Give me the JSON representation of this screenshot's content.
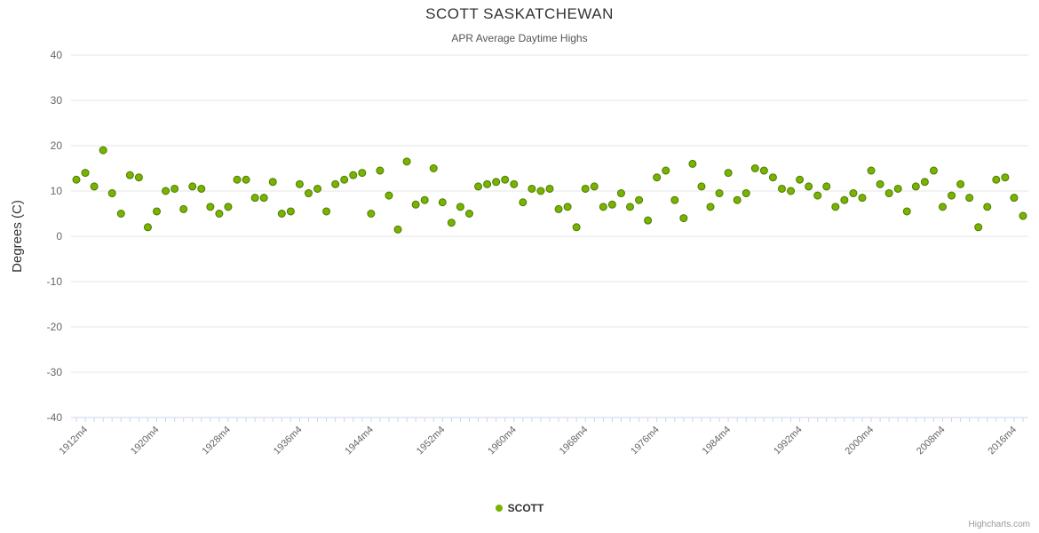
{
  "credits": "Highcharts.com",
  "chart_data": {
    "type": "scatter",
    "title": "SCOTT SASKATCHEWAN",
    "subtitle": "APR Average Daytime Highs",
    "xlabel": "",
    "ylabel": "Degrees (C)",
    "ylim": [
      -40,
      40
    ],
    "ytick_step": 10,
    "ytick_labels": [
      "-40",
      "-30",
      "-20",
      "-10",
      "0",
      "10",
      "20",
      "30",
      "40"
    ],
    "grid": true,
    "legend_position": "bottom-center",
    "x_start_year": 1911,
    "x_tick_start_year": 1912,
    "x_tick_interval": 8,
    "x_tick_labels": [
      "1912m4",
      "1920m4",
      "1928m4",
      "1936m4",
      "1944m4",
      "1952m4",
      "1960m4",
      "1968m4",
      "1976m4",
      "1984m4",
      "1992m4",
      "2000m4",
      "2008m4",
      "2016m4"
    ],
    "colors": {
      "point_fill": "#77b300",
      "point_stroke": "#4e7a00",
      "grid_line": "#e6e6e6",
      "axis_line": "#ccd6eb",
      "tick_mark": "#ccd6eb",
      "axis_label": "#666666",
      "axis_title": "#333333"
    },
    "series": [
      {
        "name": "SCOTT",
        "values": [
          12.5,
          14,
          11,
          19,
          9.5,
          5,
          13.5,
          13,
          2,
          5.5,
          10,
          10.5,
          6,
          11,
          10.5,
          6.5,
          5,
          6.5,
          12.5,
          12.5,
          8.5,
          8.5,
          12,
          5,
          5.5,
          11.5,
          9.5,
          10.5,
          5.5,
          11.5,
          12.5,
          13.5,
          14,
          5,
          14.5,
          9,
          1.5,
          16.5,
          7,
          8,
          15,
          7.5,
          3,
          6.5,
          5,
          11,
          11.5,
          12,
          12.5,
          11.5,
          7.5,
          10.5,
          10,
          10.5,
          6,
          6.5,
          2,
          10.5,
          11,
          6.5,
          7,
          9.5,
          6.5,
          8,
          3.5,
          13,
          14.5,
          8,
          4,
          16,
          11,
          6.5,
          9.5,
          14,
          8,
          9.5,
          15,
          14.5,
          13,
          10.5,
          10,
          12.5,
          11,
          9,
          11,
          6.5,
          8,
          9.5,
          8.5,
          14.5,
          11.5,
          9.5,
          10.5,
          5.5,
          11,
          12,
          14.5,
          6.5,
          9,
          11.5,
          8.5,
          2,
          6.5,
          12.5,
          13,
          8.5,
          4.5
        ]
      }
    ]
  }
}
